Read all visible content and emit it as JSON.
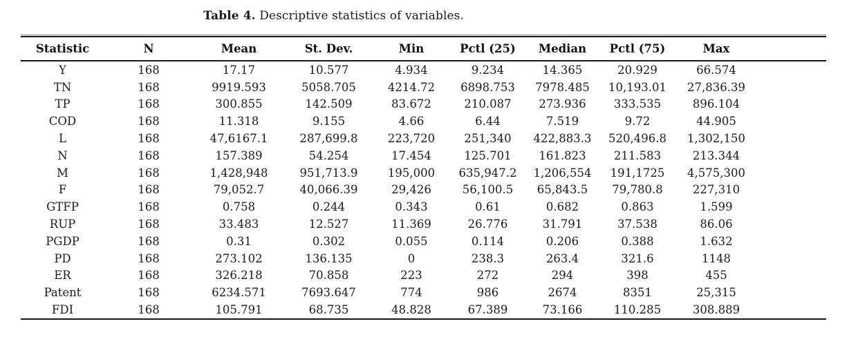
{
  "caption": {
    "label": "Table 4.",
    "text": "Descriptive statistics of variables."
  },
  "table": {
    "headers": [
      "Statistic",
      "N",
      "Mean",
      "St. Dev.",
      "Min",
      "Pctl (25)",
      "Median",
      "Pctl (75)",
      "Max"
    ],
    "rows": [
      [
        "Y",
        "168",
        "17.17",
        "10.577",
        "4.934",
        "9.234",
        "14.365",
        "20.929",
        "66.574"
      ],
      [
        "TN",
        "168",
        "9919.593",
        "5058.705",
        "4214.72",
        "6898.753",
        "7978.485",
        "10,193.01",
        "27,836.39"
      ],
      [
        "TP",
        "168",
        "300.855",
        "142.509",
        "83.672",
        "210.087",
        "273.936",
        "333.535",
        "896.104"
      ],
      [
        "COD",
        "168",
        "11.318",
        "9.155",
        "4.66",
        "6.44",
        "7.519",
        "9.72",
        "44.905"
      ],
      [
        "L",
        "168",
        "47,6167.1",
        "287,699.8",
        "223,720",
        "251,340",
        "422,883.3",
        "520,496.8",
        "1,302,150"
      ],
      [
        "N",
        "168",
        "157.389",
        "54.254",
        "17.454",
        "125.701",
        "161.823",
        "211.583",
        "213.344"
      ],
      [
        "M",
        "168",
        "1,428,948",
        "951,713.9",
        "195,000",
        "635,947.2",
        "1,206,554",
        "191,1725",
        "4,575,300"
      ],
      [
        "F",
        "168",
        "79,052.7",
        "40,066.39",
        "29,426",
        "56,100.5",
        "65,843.5",
        "79,780.8",
        "227,310"
      ],
      [
        "GTFP",
        "168",
        "0.758",
        "0.244",
        "0.343",
        "0.61",
        "0.682",
        "0.863",
        "1.599"
      ],
      [
        "RUP",
        "168",
        "33.483",
        "12.527",
        "11.369",
        "26.776",
        "31.791",
        "37.538",
        "86.06"
      ],
      [
        "PGDP",
        "168",
        "0.31",
        "0.302",
        "0.055",
        "0.114",
        "0.206",
        "0.388",
        "1.632"
      ],
      [
        "PD",
        "168",
        "273.102",
        "136.135",
        "0",
        "238.3",
        "263.4",
        "321.6",
        "1148"
      ],
      [
        "ER",
        "168",
        "326.218",
        "70.858",
        "223",
        "272",
        "294",
        "398",
        "455"
      ],
      [
        "Patent",
        "168",
        "6234.571",
        "7693.647",
        "774",
        "986",
        "2674",
        "8351",
        "25,315"
      ],
      [
        "FDI",
        "168",
        "105.791",
        "68.735",
        "48.828",
        "67.389",
        "73.166",
        "110.285",
        "308.889"
      ]
    ]
  }
}
